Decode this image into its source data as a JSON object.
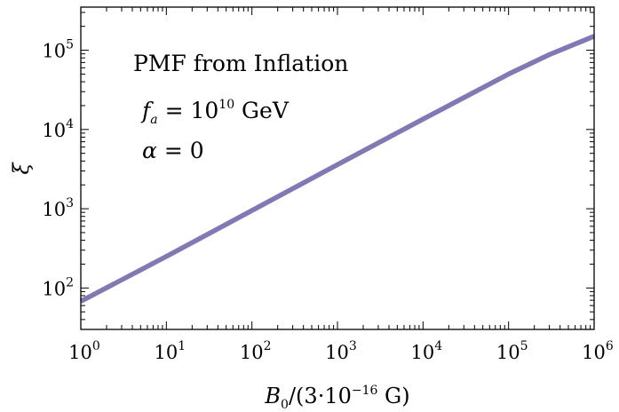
{
  "chart_data": {
    "type": "line",
    "xscale": "log",
    "yscale": "log",
    "xlim": [
      1,
      1000000
    ],
    "ylim": [
      30,
      350000
    ],
    "grid": false,
    "xlabel": {
      "main": "B",
      "sub": "0",
      "mid": "/(3·10",
      "sup": "−16",
      "end": " G)"
    },
    "ylabel": "ξ",
    "x_ticks": [
      {
        "value": 1,
        "base": "10",
        "exp": "0"
      },
      {
        "value": 10,
        "base": "10",
        "exp": "1"
      },
      {
        "value": 100,
        "base": "10",
        "exp": "2"
      },
      {
        "value": 1000,
        "base": "10",
        "exp": "3"
      },
      {
        "value": 10000,
        "base": "10",
        "exp": "4"
      },
      {
        "value": 100000,
        "base": "10",
        "exp": "5"
      },
      {
        "value": 1000000,
        "base": "10",
        "exp": "6"
      }
    ],
    "y_ticks": [
      {
        "value": 100,
        "base": "10",
        "exp": "2"
      },
      {
        "value": 1000,
        "base": "10",
        "exp": "3"
      },
      {
        "value": 10000,
        "base": "10",
        "exp": "4"
      },
      {
        "value": 100000,
        "base": "10",
        "exp": "5"
      }
    ],
    "series": [
      {
        "color": "#8079b4",
        "x": [
          1,
          10,
          100,
          1000,
          10000,
          100000,
          300000,
          1000000
        ],
        "y": [
          68,
          250,
          950,
          3600,
          13500,
          50000,
          88000,
          150000
        ]
      }
    ],
    "annotations": {
      "line1": "PMF from Inflation",
      "line2": {
        "var": "f",
        "sub": "a",
        "eq": " = 10",
        "sup": "10",
        "unit": " GeV"
      },
      "line3": {
        "var": "α",
        "eq": " = 0"
      }
    }
  }
}
